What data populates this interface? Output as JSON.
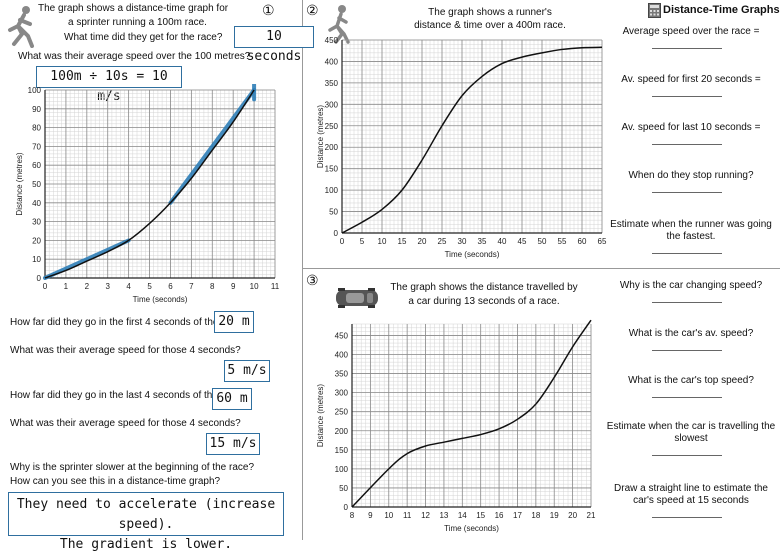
{
  "q1": {
    "number": "①",
    "intro_line1": "The graph shows a distance-time graph for",
    "intro_line2": "a sprinter running a 100m race.",
    "intro_line3": "What time did they get for the race?",
    "time_answer": "10 seconds",
    "avg_question": "What was their average speed over the 100 metres?",
    "avg_answer": "100m ÷ 10s = 10 m/s",
    "first4_question": "How far did they go in the first 4 seconds of the race?",
    "first4_answer": "20 m",
    "first4_speed_question": "What was their average speed for those 4 seconds?",
    "first4_speed_answer": "5 m/s",
    "last4_question": "How far did they go in the last 4 seconds of the race?",
    "last4_answer": "60 m",
    "last4_speed_question": "What was their average speed for those 4 seconds?",
    "last4_speed_answer": "15 m/s",
    "why_question_line1": "Why is the sprinter slower at the beginning of the race?",
    "why_question_line2": "How can you see this in a distance-time graph?",
    "why_answer_line1": "They need to accelerate (increase speed).",
    "why_answer_line2": "The gradient is lower."
  },
  "q2": {
    "number": "②",
    "intro_line1": "The graph shows a runner's",
    "intro_line2": "distance & time over a 400m race.",
    "questions": [
      "Average speed over the race =",
      "Av. speed for first 20 seconds =",
      "Av. speed for last 10 seconds =",
      "When do they stop running?",
      "Estimate when the runner was going the fastest."
    ]
  },
  "q3": {
    "number": "③",
    "intro_line1": "The graph shows the distance travelled by",
    "intro_line2": "a car during 13 seconds of a race.",
    "questions": [
      "Why is the car changing speed?",
      "What is the car's av. speed?",
      "What is the car's top speed?",
      "Estimate when the car is travelling the slowest",
      "Draw a straight line to estimate the car's speed at 15 seconds"
    ]
  },
  "header": {
    "title": "Distance-Time Graphs",
    "icon": "calculator-icon"
  },
  "colors": {
    "accent": "#2f7fb8",
    "box_border": "#2f6f9f"
  },
  "chart_data": [
    {
      "type": "line",
      "xlabel": "Time (seconds)",
      "ylabel": "Distance (metres)",
      "x_ticks": [
        "0",
        "1",
        "2",
        "3",
        "4",
        "5",
        "6",
        "7",
        "8",
        "9",
        "10",
        "11"
      ],
      "y_ticks": [
        "0",
        "10",
        "20",
        "30",
        "40",
        "50",
        "60",
        "70",
        "80",
        "90",
        "100"
      ],
      "xlim": [
        0,
        11
      ],
      "ylim": [
        0,
        100
      ],
      "grid": true,
      "series": [
        {
          "x": [
            0,
            1,
            2,
            3,
            4,
            5,
            6,
            7,
            8,
            9,
            10
          ],
          "y": [
            0,
            4,
            9,
            14,
            20,
            29,
            40,
            53,
            68,
            83,
            100
          ]
        }
      ],
      "annotations": [
        {
          "x": [
            0,
            4
          ],
          "y": [
            0,
            20
          ]
        },
        {
          "x": [
            6,
            10
          ],
          "y": [
            40,
            100
          ]
        },
        {
          "x": [
            10,
            10
          ],
          "y": [
            95,
            105
          ]
        }
      ]
    },
    {
      "type": "line",
      "xlabel": "Time (seconds)",
      "ylabel": "Distance (metres)",
      "x_ticks": [
        "0",
        "5",
        "10",
        "15",
        "20",
        "25",
        "30",
        "35",
        "40",
        "45",
        "50",
        "55",
        "60",
        "65"
      ],
      "y_ticks": [
        "0",
        "50",
        "100",
        "150",
        "200",
        "250",
        "300",
        "350",
        "400",
        "450"
      ],
      "xlim": [
        0,
        65
      ],
      "ylim": [
        0,
        450
      ],
      "grid": true,
      "series": [
        {
          "x": [
            0,
            5,
            10,
            15,
            20,
            25,
            30,
            35,
            40,
            45,
            50,
            55,
            60,
            65
          ],
          "y": [
            0,
            25,
            55,
            100,
            170,
            250,
            320,
            365,
            395,
            410,
            420,
            428,
            432,
            433
          ]
        }
      ]
    },
    {
      "type": "line",
      "xlabel": "Time (seconds)",
      "ylabel": "Distance (metres)",
      "x_ticks": [
        "8",
        "9",
        "10",
        "11",
        "12",
        "13",
        "14",
        "15",
        "16",
        "17",
        "18",
        "19",
        "20",
        "21"
      ],
      "y_ticks": [
        "0",
        "50",
        "100",
        "150",
        "200",
        "250",
        "300",
        "350",
        "400",
        "450"
      ],
      "xlim": [
        8,
        21
      ],
      "ylim": [
        0,
        480
      ],
      "grid": true,
      "series": [
        {
          "x": [
            8,
            10,
            11,
            12,
            13,
            14,
            15,
            16,
            17,
            18,
            19,
            20,
            21
          ],
          "y": [
            0,
            100,
            140,
            160,
            170,
            180,
            190,
            205,
            230,
            270,
            340,
            420,
            490
          ]
        }
      ]
    }
  ]
}
